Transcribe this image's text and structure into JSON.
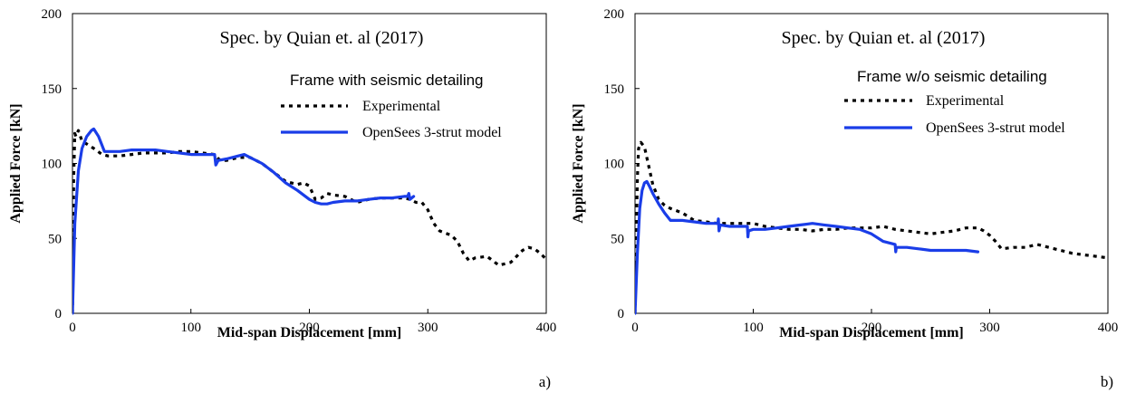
{
  "chart_data": [
    {
      "type": "line",
      "panel_label": "a)",
      "title": "Spec. by Quian et. al (2017)",
      "legend_title": "Frame with seismic detailing",
      "xlabel": "Mid-span Displacement [mm]",
      "ylabel": "Applied Force [kN]",
      "xlim": [
        0,
        400
      ],
      "ylim": [
        0,
        200
      ],
      "xticks": [
        0,
        100,
        200,
        300,
        400
      ],
      "yticks": [
        0,
        50,
        100,
        150,
        200
      ],
      "grid": false,
      "legend_position": "top-right",
      "series": [
        {
          "name": "Experimental",
          "color": "#000000",
          "style": "dotted",
          "x": [
            0,
            0.5,
            1,
            2,
            3,
            5,
            8,
            12,
            18,
            25,
            30,
            40,
            50,
            60,
            70,
            80,
            90,
            100,
            110,
            120,
            122,
            125,
            130,
            140,
            150,
            160,
            170,
            180,
            190,
            195,
            200,
            205,
            210,
            215,
            220,
            230,
            240,
            250,
            260,
            270,
            280,
            285,
            290,
            295,
            300,
            305,
            310,
            320,
            325,
            330,
            335,
            340,
            350,
            360,
            370,
            380,
            385,
            390,
            395,
            400
          ],
          "y": [
            0,
            40,
            90,
            120,
            118,
            122,
            115,
            113,
            110,
            106,
            105,
            105,
            106,
            107,
            107,
            107,
            108,
            108,
            107,
            106,
            104,
            102,
            102,
            104,
            104,
            100,
            94,
            88,
            86,
            87,
            85,
            76,
            77,
            80,
            79,
            78,
            74,
            76,
            77,
            77,
            77,
            76,
            74,
            74,
            69,
            60,
            55,
            52,
            48,
            40,
            35,
            37,
            38,
            32,
            34,
            42,
            44,
            43,
            40,
            36
          ]
        },
        {
          "name": "OpenSees 3-strut model",
          "color": "#1a3de8",
          "style": "solid",
          "x": [
            0,
            2,
            5,
            8,
            12,
            16,
            18,
            22,
            27,
            30,
            40,
            50,
            60,
            70,
            80,
            90,
            100,
            110,
            118,
            120,
            121,
            123,
            130,
            140,
            145,
            150,
            160,
            170,
            180,
            190,
            200,
            205,
            210,
            215,
            220,
            230,
            240,
            250,
            260,
            270,
            280,
            283,
            284,
            285,
            288
          ],
          "y": [
            0,
            60,
            95,
            110,
            118,
            122,
            123,
            118,
            108,
            108,
            108,
            109,
            109,
            109,
            108,
            107,
            106,
            106,
            106,
            106,
            99,
            102,
            103,
            105,
            106,
            104,
            100,
            94,
            87,
            82,
            76,
            74,
            73,
            73,
            74,
            75,
            75,
            76,
            77,
            77,
            78,
            78,
            80,
            76,
            78
          ]
        }
      ]
    },
    {
      "type": "line",
      "panel_label": "b)",
      "title": "Spec. by Quian et. al (2017)",
      "legend_title": "Frame w/o seismic detailing",
      "xlabel": "Mid-span Displacement [mm]",
      "ylabel": "Applied Force [kN]",
      "xlim": [
        0,
        400
      ],
      "ylim": [
        0,
        200
      ],
      "xticks": [
        0,
        100,
        200,
        300,
        400
      ],
      "yticks": [
        0,
        50,
        100,
        150,
        200
      ],
      "grid": false,
      "legend_position": "top-right",
      "series": [
        {
          "name": "Experimental",
          "color": "#000000",
          "style": "dotted",
          "x": [
            0,
            1,
            2,
            3,
            5,
            8,
            10,
            15,
            20,
            25,
            30,
            40,
            50,
            60,
            70,
            80,
            90,
            100,
            110,
            120,
            130,
            140,
            150,
            160,
            170,
            180,
            190,
            200,
            210,
            220,
            230,
            240,
            250,
            260,
            270,
            280,
            290,
            295,
            300,
            305,
            310,
            320,
            330,
            340,
            350,
            360,
            370,
            380,
            390,
            400
          ],
          "y": [
            0,
            50,
            90,
            110,
            114,
            111,
            104,
            86,
            76,
            72,
            70,
            67,
            62,
            61,
            60,
            60,
            60,
            60,
            58,
            57,
            56,
            56,
            55,
            56,
            56,
            57,
            57,
            57,
            58,
            56,
            55,
            54,
            53,
            54,
            55,
            57,
            57,
            55,
            52,
            48,
            43,
            44,
            44,
            46,
            44,
            42,
            40,
            39,
            38,
            37
          ]
        },
        {
          "name": "OpenSees 3-strut model",
          "color": "#1a3de8",
          "style": "solid",
          "x": [
            0,
            2,
            4,
            6,
            8,
            10,
            12,
            15,
            20,
            25,
            30,
            40,
            50,
            60,
            70,
            70.5,
            71,
            72,
            80,
            90,
            95,
            95.5,
            96,
            100,
            110,
            120,
            130,
            140,
            150,
            160,
            170,
            180,
            190,
            200,
            210,
            220,
            220.5,
            221,
            230,
            240,
            250,
            260,
            270,
            280,
            290
          ],
          "y": [
            0,
            40,
            70,
            82,
            87,
            88,
            85,
            80,
            73,
            67,
            62,
            62,
            61,
            60,
            60,
            63,
            55,
            59,
            58,
            58,
            58,
            51,
            55,
            56,
            56,
            57,
            58,
            59,
            60,
            59,
            58,
            57,
            56,
            53,
            48,
            46,
            41,
            44,
            44,
            43,
            42,
            42,
            42,
            42,
            41
          ]
        }
      ]
    }
  ]
}
